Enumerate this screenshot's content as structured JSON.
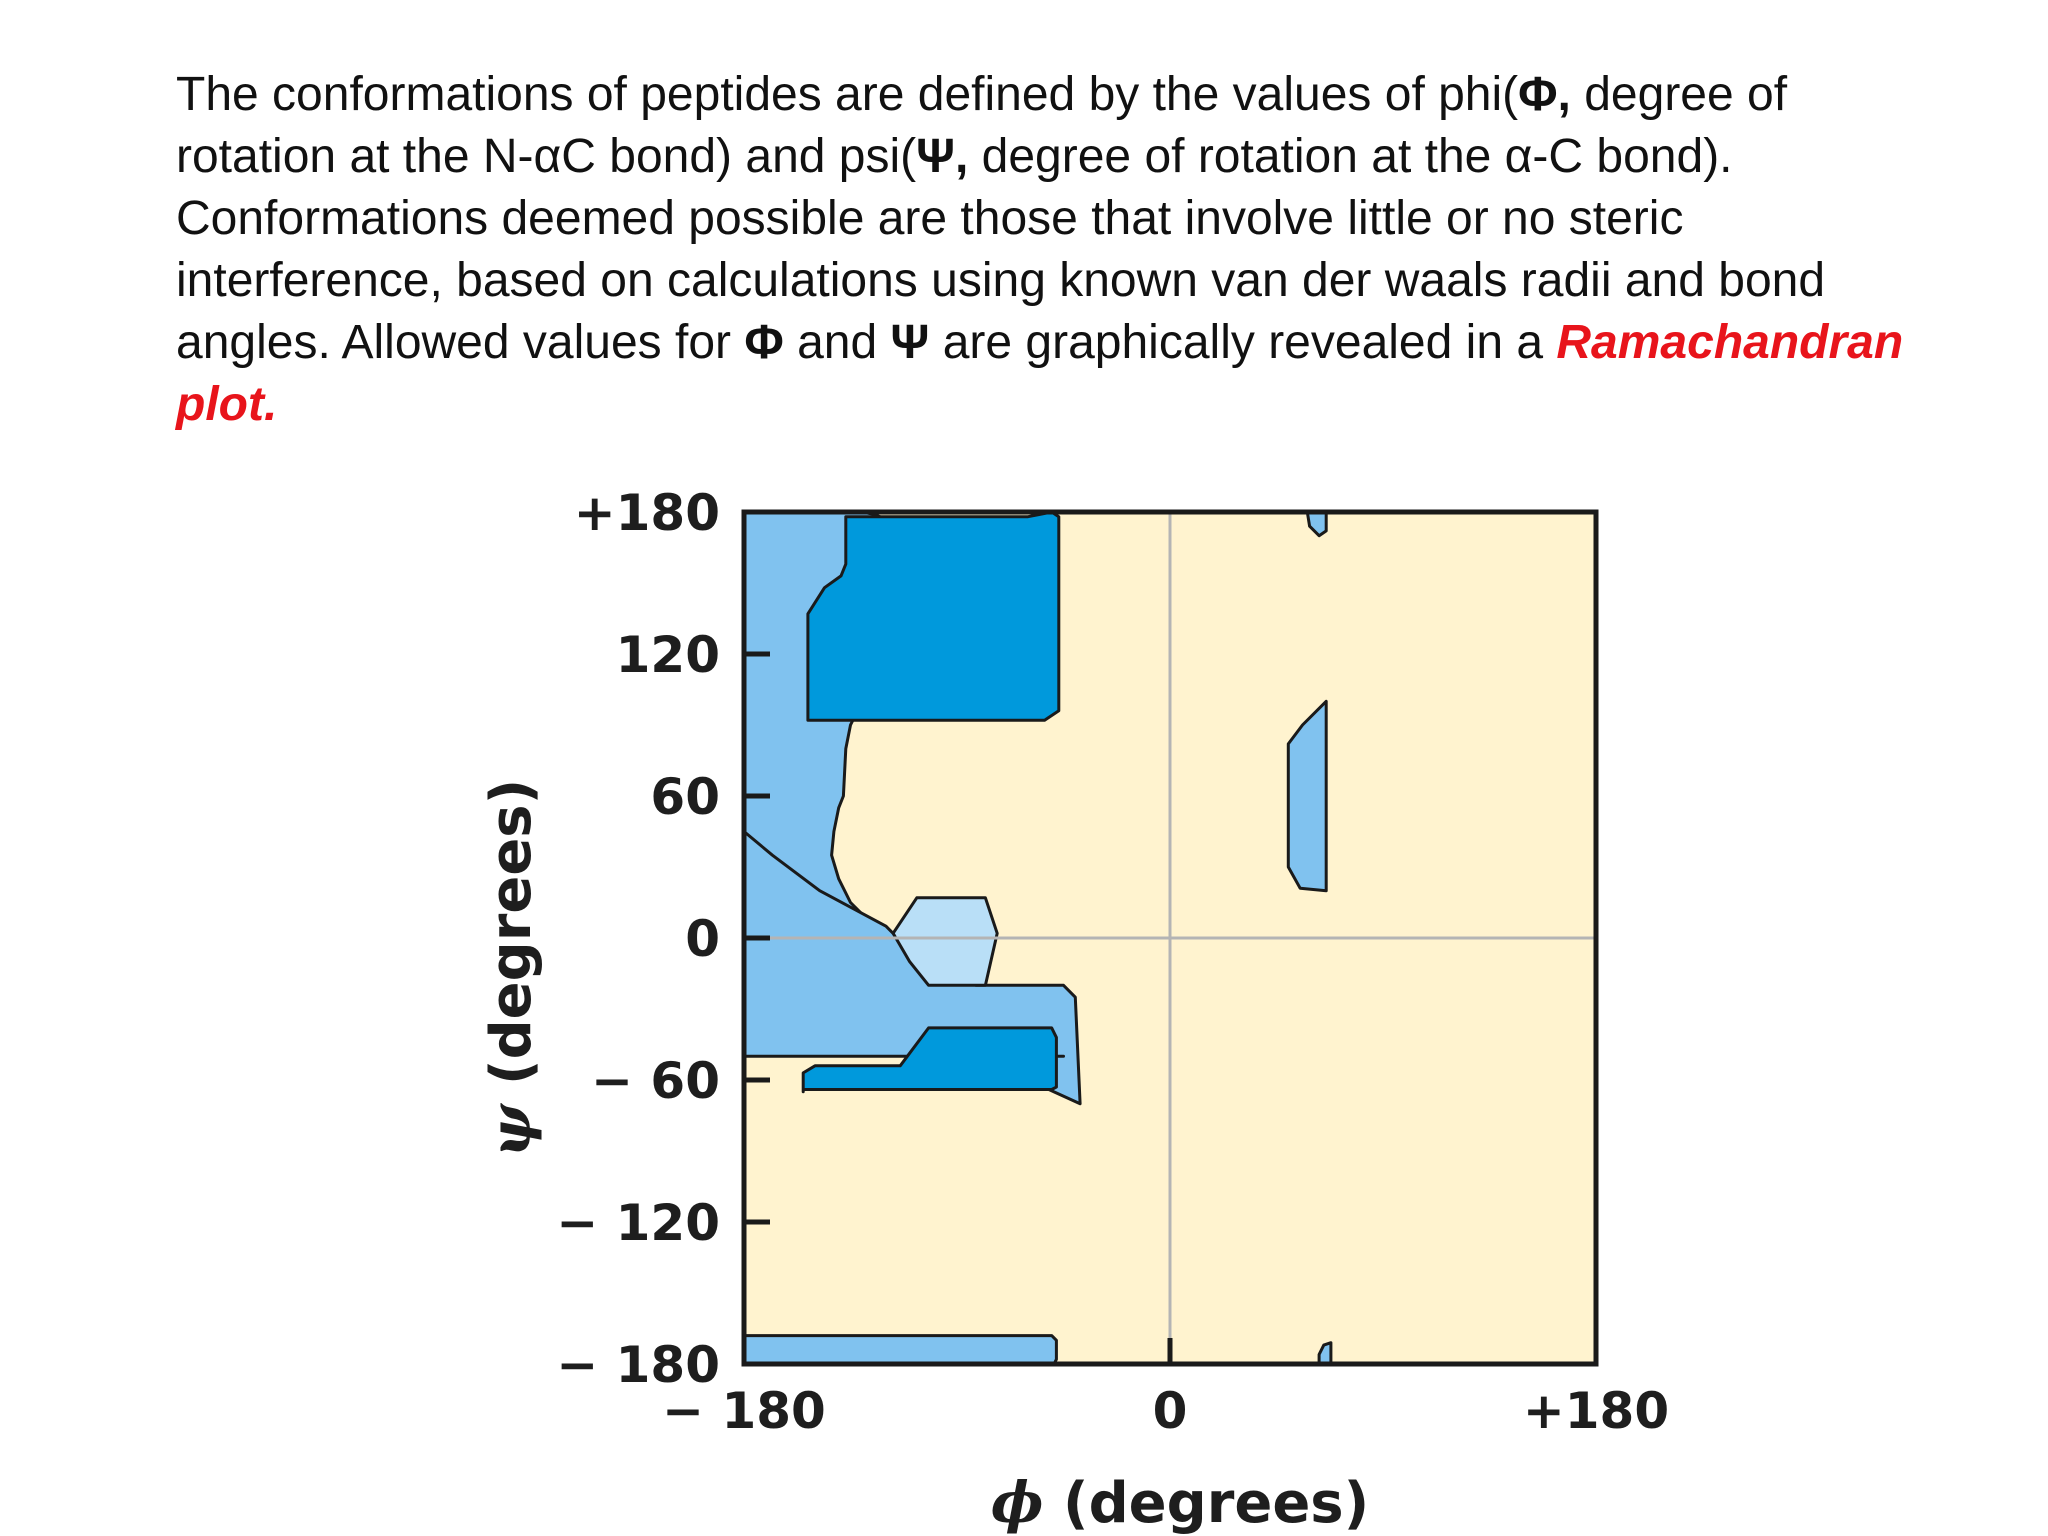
{
  "text": {
    "l1_a": "The conformations of peptides are defined by the values of phi(",
    "l1_sym": "Φ,",
    "l1_b": " degree of rotation at the N-αC bond) and psi(",
    "l2_sym": "Ψ,",
    "l2_b": " degree of rotation at the α-C bond). Conformations deemed possible are those that involve little or no steric interference, based on calculations using known van der waals radii and bond angles. Allowed values for ",
    "l5_sym1": "Φ",
    "l5_mid": " and ",
    "l5_sym2": "Ψ",
    "l5_b": " are graphically revealed in a ",
    "emphasis": "Ramachandran plot."
  },
  "chart_data": {
    "type": "contour",
    "xlabel_symbol": "ϕ",
    "xlabel_text": " (degrees)",
    "ylabel_symbol": "ψ",
    "ylabel_text": " (degrees)",
    "xlim": [
      -180,
      180
    ],
    "ylim": [
      -180,
      180
    ],
    "x_ticks": [
      {
        "value": -180,
        "label": "− 180"
      },
      {
        "value": 0,
        "label": "0"
      },
      {
        "value": 180,
        "label": "+180"
      }
    ],
    "y_ticks": [
      {
        "value": 180,
        "label": "+180"
      },
      {
        "value": 120,
        "label": "120"
      },
      {
        "value": 60,
        "label": "60"
      },
      {
        "value": 0,
        "label": "0"
      },
      {
        "value": -60,
        "label": "− 60"
      },
      {
        "value": -120,
        "label": "− 120"
      },
      {
        "value": -180,
        "label": "− 180"
      }
    ],
    "colors": {
      "background": "#fff3cf",
      "allowed_outer": "#80c2ef",
      "allowed_core": "#0099dc",
      "bridge": "#b9dff7",
      "outline": "#1a1a1a",
      "gridline": "#b4b4b4"
    },
    "regions": [
      {
        "kind": "outer",
        "points": [
          [
            -180,
            180
          ],
          [
            -130,
            180
          ],
          [
            -125,
            179
          ],
          [
            -120,
            177
          ],
          [
            -115,
            172
          ],
          [
            -115,
            113
          ],
          [
            -117,
            110
          ],
          [
            -130,
            100
          ],
          [
            -135,
            90
          ],
          [
            -137,
            80
          ],
          [
            -138,
            60
          ],
          [
            -140,
            55
          ],
          [
            -142,
            45
          ],
          [
            -143,
            35
          ],
          [
            -140,
            25
          ],
          [
            -135,
            15
          ],
          [
            -130,
            10
          ],
          [
            -135,
            -10
          ],
          [
            -150,
            -20
          ],
          [
            -155,
            -25
          ],
          [
            -160,
            -45
          ],
          [
            -180,
            -50
          ]
        ]
      },
      {
        "kind": "outer",
        "points": [
          [
            -180,
            -50
          ],
          [
            -45,
            -50
          ],
          [
            -45,
            -50
          ],
          [
            -55,
            -50
          ],
          [
            -55,
            -50
          ],
          [
            -60,
            -60
          ],
          [
            -60,
            -60
          ],
          [
            -38,
            -70
          ],
          [
            -38,
            -70
          ],
          [
            -40,
            -25
          ],
          [
            -45,
            -20
          ],
          [
            -82,
            -20
          ],
          [
            -105,
            -10
          ],
          [
            -120,
            5
          ],
          [
            -148,
            20
          ],
          [
            -168,
            35
          ],
          [
            -180,
            45
          ]
        ]
      },
      {
        "kind": "outer",
        "points": [
          [
            -180,
            -168
          ],
          [
            -50,
            -168
          ],
          [
            -48,
            -170
          ],
          [
            -48,
            -178
          ],
          [
            -49,
            -180
          ],
          [
            -180,
            -180
          ]
        ]
      },
      {
        "kind": "outer",
        "points": [
          [
            50,
            82
          ],
          [
            56,
            90
          ],
          [
            66,
            100
          ],
          [
            66,
            20
          ],
          [
            55,
            21
          ],
          [
            50,
            30
          ]
        ]
      },
      {
        "kind": "outer",
        "points": [
          [
            58,
            180
          ],
          [
            66,
            180
          ],
          [
            66,
            172
          ],
          [
            63,
            170
          ],
          [
            59,
            174
          ]
        ]
      },
      {
        "kind": "outer",
        "points": [
          [
            63,
            -180
          ],
          [
            68,
            -180
          ],
          [
            68,
            -171
          ],
          [
            65,
            -172
          ],
          [
            63,
            -176
          ]
        ]
      },
      {
        "kind": "core",
        "points": [
          [
            -137,
            178
          ],
          [
            -137,
            158
          ],
          [
            -139,
            153
          ],
          [
            -146,
            148
          ],
          [
            -153,
            137
          ],
          [
            -153,
            92
          ],
          [
            -53,
            92
          ],
          [
            -47,
            96
          ],
          [
            -47,
            178
          ],
          [
            -50,
            180
          ],
          [
            -55,
            179
          ],
          [
            -60,
            178
          ]
        ]
      },
      {
        "kind": "core",
        "points": [
          [
            -155,
            -65
          ],
          [
            -155,
            -57
          ],
          [
            -150,
            -54
          ],
          [
            -114,
            -54
          ],
          [
            -102,
            -38
          ],
          [
            -50,
            -38
          ],
          [
            -48,
            -42
          ],
          [
            -48,
            -63
          ],
          [
            -50,
            -64
          ],
          [
            -62,
            -64
          ],
          [
            -155,
            -64
          ]
        ]
      },
      {
        "kind": "bridge",
        "points": [
          [
            -107,
            17
          ],
          [
            -78,
            17
          ],
          [
            -73,
            2
          ],
          [
            -78,
            -20
          ],
          [
            -102,
            -20
          ],
          [
            -110,
            -10
          ],
          [
            -117,
            2
          ]
        ]
      }
    ]
  }
}
